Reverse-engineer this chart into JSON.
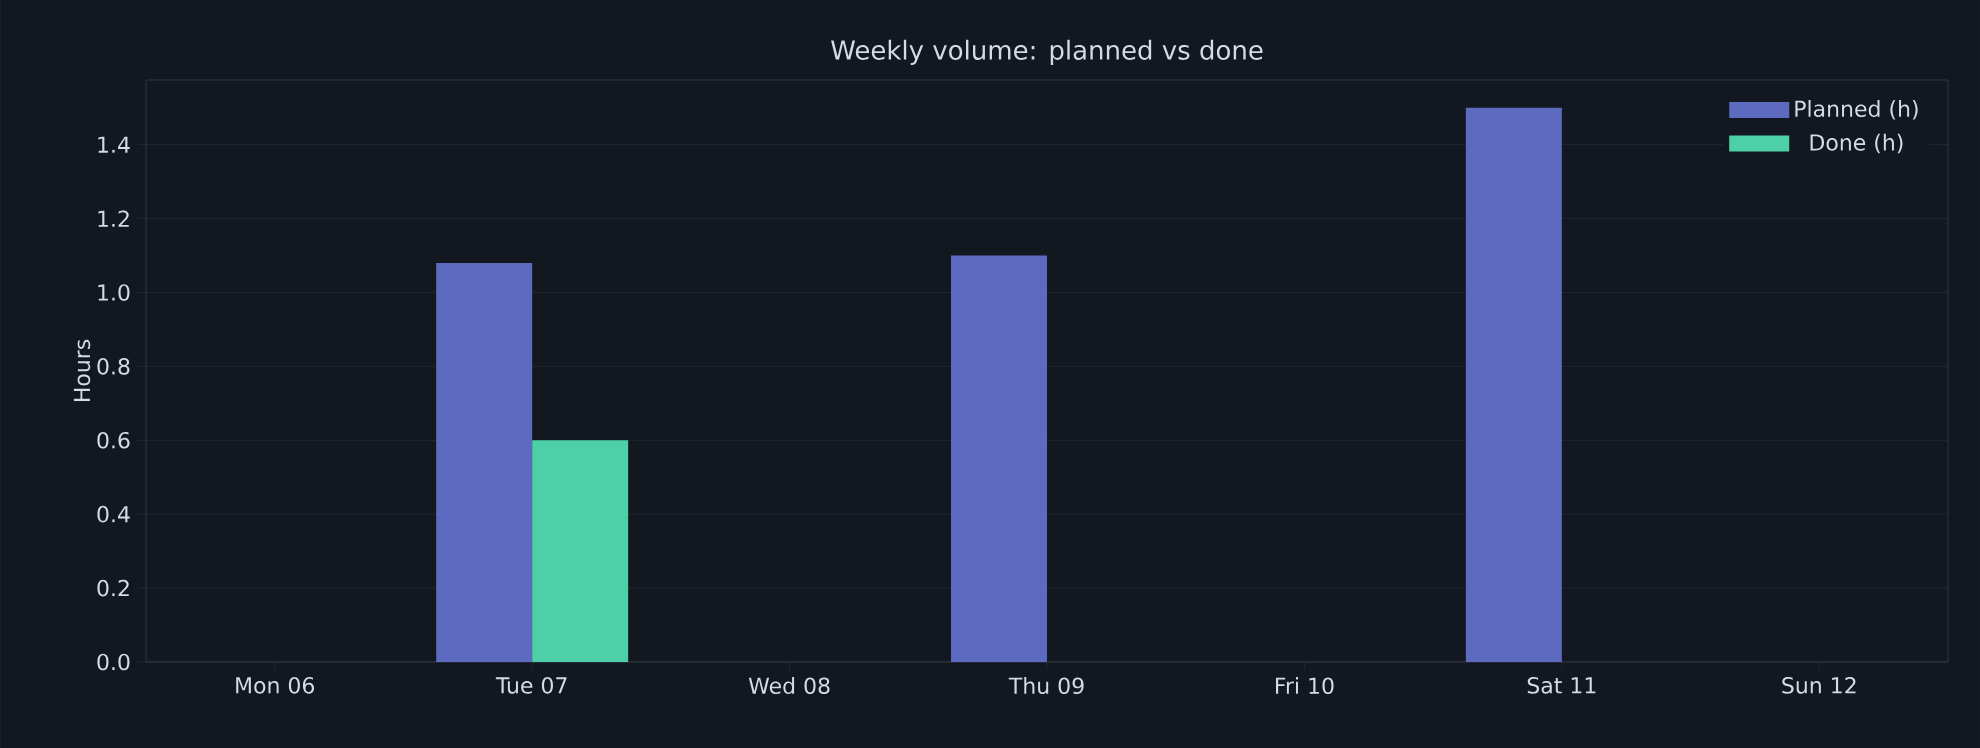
{
  "chart_data": {
    "type": "bar",
    "title": "Weekly volume: planned vs done",
    "ylabel": "Hours",
    "categories": [
      "Mon 06",
      "Tue 07",
      "Wed 08",
      "Thu 09",
      "Fri 10",
      "Sat 11",
      "Sun 12"
    ],
    "series": [
      {
        "name": "Planned (h)",
        "color": "#5c6bc0",
        "values": [
          0,
          1.08,
          0,
          1.1,
          0,
          1.5,
          0
        ]
      },
      {
        "name": "Done (h)",
        "color": "#4dd0a7",
        "values": [
          0,
          0.6,
          0,
          0,
          0,
          0,
          0
        ]
      }
    ],
    "ylim": [
      0,
      1.575
    ],
    "yticks": [
      {
        "value": 0,
        "label": "0.0"
      },
      {
        "value": 0.2,
        "label": "0.2"
      },
      {
        "value": 0.4,
        "label": "0.4"
      },
      {
        "value": 0.6,
        "label": "0.6"
      },
      {
        "value": 0.8,
        "label": "0.8"
      },
      {
        "value": 1.0,
        "label": "1.0"
      },
      {
        "value": 1.2,
        "label": "1.2"
      },
      {
        "value": 1.4,
        "label": "1.4"
      }
    ],
    "grid": "y",
    "legend": "top right"
  }
}
